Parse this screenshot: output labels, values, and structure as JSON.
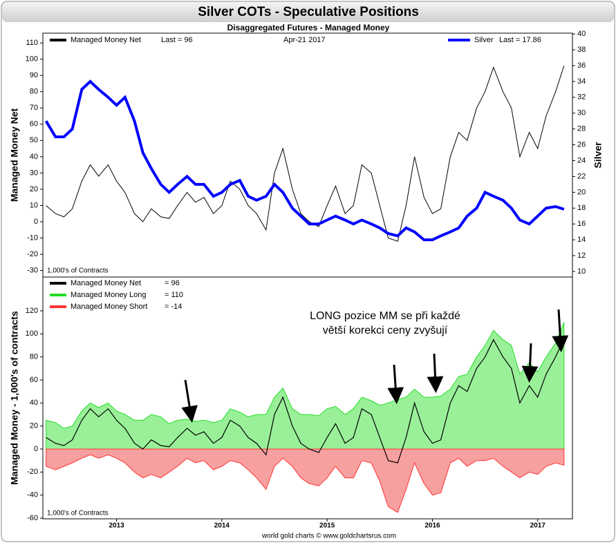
{
  "chart_data": [
    {
      "type": "line",
      "title": "Silver COTs - Speculative Positions",
      "subtitle": "Disaggregated Futures - Managed Money",
      "ylabel": "Managed Money Net",
      "y2label": "Silver",
      "date_label": "Apr-21  2017",
      "units_note": "1,000's of Contracts",
      "xlim": [
        2012.3,
        2017.33
      ],
      "ylim": [
        -34,
        116
      ],
      "yticks": [
        -30,
        -20,
        -10,
        0,
        10,
        20,
        30,
        40,
        50,
        60,
        70,
        80,
        90,
        100,
        110
      ],
      "y2lim": [
        9.3,
        40.1
      ],
      "y2ticks": [
        10,
        12,
        14,
        16,
        18,
        20,
        22,
        24,
        26,
        28,
        30,
        32,
        34,
        36,
        38,
        40
      ],
      "x": [
        2012.33,
        2012.42,
        2012.5,
        2012.58,
        2012.67,
        2012.75,
        2012.83,
        2012.92,
        2013.0,
        2013.08,
        2013.17,
        2013.25,
        2013.33,
        2013.42,
        2013.5,
        2013.58,
        2013.67,
        2013.75,
        2013.83,
        2013.92,
        2014.0,
        2014.08,
        2014.17,
        2014.25,
        2014.33,
        2014.42,
        2014.5,
        2014.58,
        2014.67,
        2014.75,
        2014.83,
        2014.92,
        2015.0,
        2015.08,
        2015.17,
        2015.25,
        2015.33,
        2015.42,
        2015.5,
        2015.58,
        2015.67,
        2015.75,
        2015.83,
        2015.92,
        2016.0,
        2016.08,
        2016.17,
        2016.25,
        2016.33,
        2016.42,
        2016.5,
        2016.58,
        2016.67,
        2016.75,
        2016.83,
        2016.92,
        2017.0,
        2017.08,
        2017.17,
        2017.25
      ],
      "series": [
        {
          "name": "Managed Money Net",
          "legend_label": "Last = 96",
          "color": "#000000",
          "axis": "y",
          "values": [
            10,
            5,
            3,
            8,
            25,
            35,
            28,
            35,
            25,
            18,
            5,
            0,
            8,
            3,
            2,
            10,
            18,
            12,
            15,
            5,
            10,
            25,
            20,
            10,
            5,
            -5,
            30,
            45,
            20,
            5,
            0,
            -3,
            10,
            22,
            5,
            10,
            35,
            30,
            10,
            -10,
            -12,
            10,
            40,
            15,
            5,
            8,
            40,
            55,
            50,
            70,
            80,
            95,
            80,
            70,
            40,
            55,
            45,
            65,
            80,
            96
          ]
        },
        {
          "name": "Silver",
          "legend_label": "Last = 17.86",
          "color": "#0000ff",
          "axis": "y2",
          "values": [
            29,
            27,
            27,
            28,
            33,
            34,
            33,
            32,
            31,
            32,
            29,
            25,
            23,
            21,
            20,
            21,
            22,
            21,
            21,
            19.5,
            20,
            21,
            21.5,
            19.5,
            19,
            19.5,
            21,
            20,
            18,
            17,
            16,
            16,
            16.5,
            17,
            16.5,
            16,
            16.5,
            16,
            15.5,
            14.8,
            14.5,
            15.5,
            15,
            14,
            14,
            14.5,
            15,
            15.5,
            17,
            18,
            20,
            19.5,
            19,
            18,
            16.5,
            16,
            17,
            18,
            18.2,
            17.86
          ]
        }
      ]
    },
    {
      "type": "area",
      "ylabel": "Managed Money - 1,000's of contracts",
      "units_note": "1,000's of Contracts",
      "annotation": [
        "LONG pozice MM se při každé",
        "větší korekci ceny zvyšují"
      ],
      "source": "world gold charts © www.goldchartsrus.com",
      "xlim": [
        2012.3,
        2017.33
      ],
      "xticks": [
        2013,
        2014,
        2015,
        2016,
        2017
      ],
      "ylim": [
        -60.6,
        149.4
      ],
      "yticks": [
        -60,
        -40,
        -20,
        0,
        20,
        40,
        60,
        80,
        100,
        120
      ],
      "x": [
        2012.33,
        2012.42,
        2012.5,
        2012.58,
        2012.67,
        2012.75,
        2012.83,
        2012.92,
        2013.0,
        2013.08,
        2013.17,
        2013.25,
        2013.33,
        2013.42,
        2013.5,
        2013.58,
        2013.67,
        2013.75,
        2013.83,
        2013.92,
        2014.0,
        2014.08,
        2014.17,
        2014.25,
        2014.33,
        2014.42,
        2014.5,
        2014.58,
        2014.67,
        2014.75,
        2014.83,
        2014.92,
        2015.0,
        2015.08,
        2015.17,
        2015.25,
        2015.33,
        2015.42,
        2015.5,
        2015.58,
        2015.67,
        2015.75,
        2015.83,
        2015.92,
        2016.0,
        2016.08,
        2016.17,
        2016.25,
        2016.33,
        2016.42,
        2016.5,
        2016.58,
        2016.67,
        2016.75,
        2016.83,
        2016.92,
        2017.0,
        2017.08,
        2017.17,
        2017.25
      ],
      "series": [
        {
          "name": "Managed Money Long",
          "legend_label": "= 110",
          "color": "#22dd22",
          "fill": "#99f099",
          "kind": "area",
          "values": [
            25,
            23,
            18,
            20,
            33,
            40,
            36,
            40,
            33,
            30,
            25,
            25,
            30,
            28,
            22,
            25,
            26,
            24,
            25,
            23,
            25,
            35,
            32,
            28,
            30,
            30,
            45,
            53,
            35,
            30,
            30,
            29,
            35,
            37,
            30,
            35,
            45,
            42,
            38,
            40,
            43,
            45,
            52,
            45,
            45,
            46,
            52,
            63,
            65,
            80,
            90,
            103,
            95,
            90,
            65,
            75,
            67,
            80,
            92,
            110
          ]
        },
        {
          "name": "Managed Money Short",
          "legend_label": "= -14",
          "color": "#ff3333",
          "fill": "#f7a0a0",
          "kind": "area",
          "values": [
            -15,
            -18,
            -15,
            -12,
            -8,
            -5,
            -8,
            -5,
            -8,
            -12,
            -20,
            -25,
            -22,
            -25,
            -20,
            -15,
            -8,
            -12,
            -10,
            -18,
            -15,
            -10,
            -12,
            -18,
            -25,
            -35,
            -15,
            -8,
            -15,
            -25,
            -30,
            -32,
            -25,
            -15,
            -25,
            -25,
            -10,
            -12,
            -28,
            -50,
            -55,
            -35,
            -12,
            -30,
            -40,
            -38,
            -12,
            -8,
            -15,
            -10,
            -10,
            -8,
            -15,
            -20,
            -25,
            -20,
            -22,
            -15,
            -12,
            -14
          ]
        },
        {
          "name": "Managed Money Net",
          "legend_label": "= 96",
          "color": "#000000",
          "kind": "line",
          "values": [
            10,
            5,
            3,
            8,
            25,
            35,
            28,
            35,
            25,
            18,
            5,
            0,
            8,
            3,
            2,
            10,
            18,
            12,
            15,
            5,
            10,
            25,
            20,
            10,
            5,
            -5,
            30,
            45,
            20,
            5,
            0,
            -3,
            10,
            22,
            5,
            10,
            35,
            30,
            10,
            -10,
            -12,
            10,
            40,
            15,
            5,
            8,
            40,
            55,
            50,
            70,
            80,
            95,
            80,
            70,
            40,
            55,
            45,
            65,
            80,
            96
          ]
        }
      ]
    }
  ]
}
